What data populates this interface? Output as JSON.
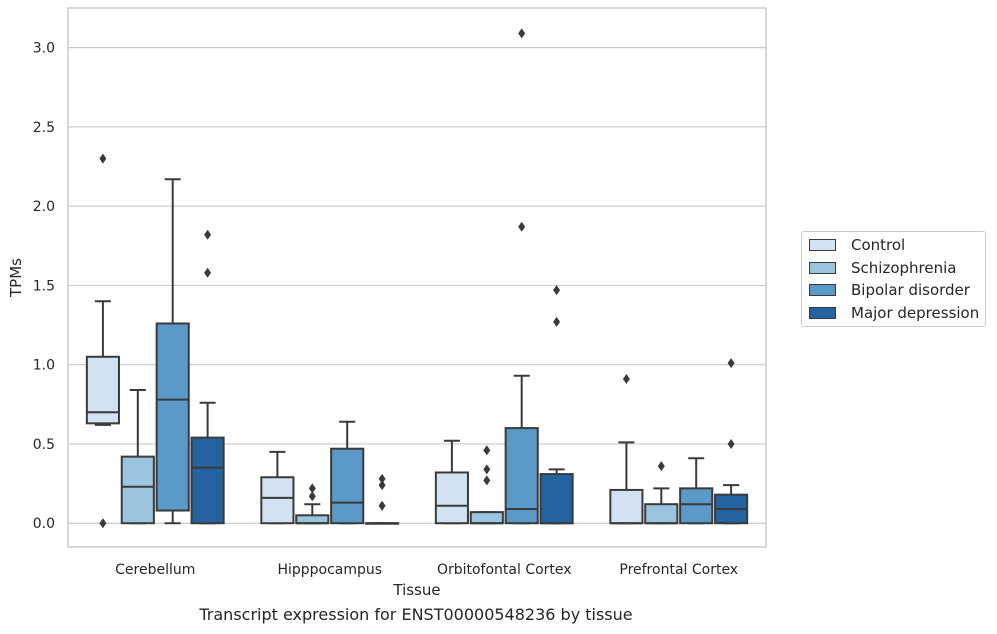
{
  "chart_data": {
    "type": "box",
    "caption": "Transcript expression for ENST00000548236 by tissue",
    "xlabel": "Tissue",
    "ylabel": "TPMs",
    "ylim": [
      -0.15,
      3.25
    ],
    "yticks": [
      "0.0",
      "0.5",
      "1.0",
      "1.5",
      "2.0",
      "2.5",
      "3.0"
    ],
    "grid": "horizontal",
    "legend_position": "right",
    "categories": [
      "Cerebellum",
      "Hipppocampus",
      "Orbitofontal Cortex",
      "Prefrontal Cortex"
    ],
    "series": [
      {
        "name": "Control",
        "color": "#d2e2f3",
        "boxes": [
          {
            "min": 0.62,
            "q1": 0.63,
            "median": 0.7,
            "q3": 1.05,
            "max": 1.4,
            "outliers": [
              2.3,
              0.0
            ]
          },
          {
            "min": 0.0,
            "q1": 0.0,
            "median": 0.16,
            "q3": 0.29,
            "max": 0.45,
            "outliers": []
          },
          {
            "min": 0.0,
            "q1": 0.0,
            "median": 0.11,
            "q3": 0.32,
            "max": 0.52,
            "outliers": []
          },
          {
            "min": 0.0,
            "q1": 0.0,
            "median": 0.0,
            "q3": 0.21,
            "max": 0.51,
            "outliers": [
              0.91
            ]
          }
        ]
      },
      {
        "name": "Schizophrenia",
        "color": "#9bc4df",
        "boxes": [
          {
            "min": 0.0,
            "q1": 0.0,
            "median": 0.23,
            "q3": 0.42,
            "max": 0.84,
            "outliers": []
          },
          {
            "min": 0.0,
            "q1": 0.0,
            "median": 0.0,
            "q3": 0.05,
            "max": 0.12,
            "outliers": [
              0.17,
              0.22
            ]
          },
          {
            "min": 0.0,
            "q1": 0.0,
            "median": 0.0,
            "q3": 0.07,
            "max": 0.07,
            "outliers": [
              0.27,
              0.34,
              0.46
            ]
          },
          {
            "min": 0.0,
            "q1": 0.0,
            "median": 0.0,
            "q3": 0.12,
            "max": 0.22,
            "outliers": [
              0.36
            ]
          }
        ]
      },
      {
        "name": "Bipolar disorder",
        "color": "#5a99c8",
        "boxes": [
          {
            "min": 0.0,
            "q1": 0.08,
            "median": 0.78,
            "q3": 1.26,
            "max": 2.17,
            "outliers": []
          },
          {
            "min": 0.0,
            "q1": 0.0,
            "median": 0.13,
            "q3": 0.47,
            "max": 0.64,
            "outliers": []
          },
          {
            "min": 0.0,
            "q1": 0.0,
            "median": 0.09,
            "q3": 0.6,
            "max": 0.93,
            "outliers": [
              1.87,
              3.09
            ]
          },
          {
            "min": 0.0,
            "q1": 0.0,
            "median": 0.12,
            "q3": 0.22,
            "max": 0.41,
            "outliers": []
          }
        ]
      },
      {
        "name": "Major depression",
        "color": "#2363a0",
        "boxes": [
          {
            "min": 0.0,
            "q1": 0.0,
            "median": 0.35,
            "q3": 0.54,
            "max": 0.76,
            "outliers": [
              1.58,
              1.82
            ]
          },
          {
            "min": 0.0,
            "q1": 0.0,
            "median": 0.0,
            "q3": 0.0,
            "max": 0.0,
            "outliers": [
              0.11,
              0.24,
              0.28
            ]
          },
          {
            "min": 0.0,
            "q1": 0.0,
            "median": 0.0,
            "q3": 0.31,
            "max": 0.34,
            "outliers": [
              1.27,
              1.47
            ]
          },
          {
            "min": 0.0,
            "q1": 0.0,
            "median": 0.09,
            "q3": 0.18,
            "max": 0.24,
            "outliers": [
              0.5,
              1.01
            ]
          }
        ]
      }
    ]
  }
}
